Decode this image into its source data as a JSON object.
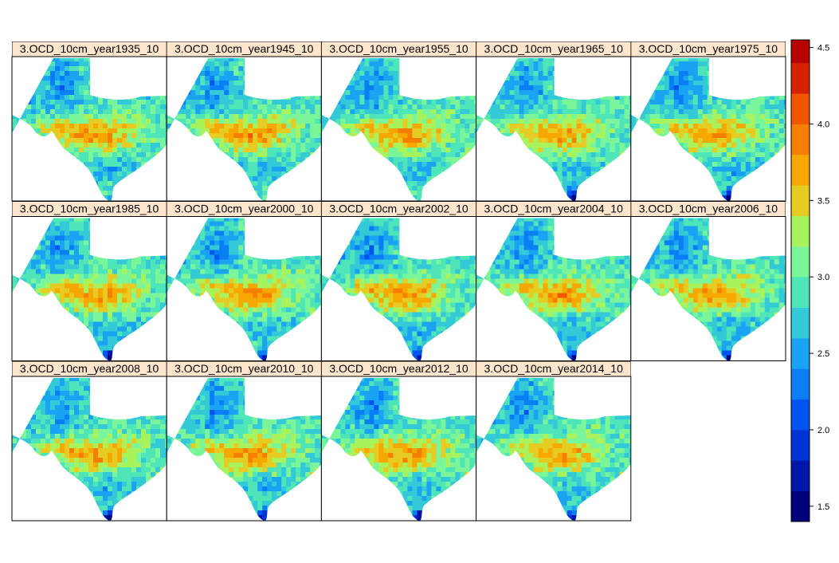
{
  "chart_data": {
    "type": "heatmap",
    "title": "",
    "xlabel": "",
    "ylabel": "",
    "layout": {
      "columns": 5,
      "rows": 3
    },
    "panels": [
      {
        "label": "3.OCD_10cm_year1935_10",
        "year": 1935
      },
      {
        "label": "3.OCD_10cm_year1945_10",
        "year": 1945
      },
      {
        "label": "3.OCD_10cm_year1955_10",
        "year": 1955
      },
      {
        "label": "3.OCD_10cm_year1965_10",
        "year": 1965
      },
      {
        "label": "3.OCD_10cm_year1975_10",
        "year": 1975
      },
      {
        "label": "3.OCD_10cm_year1985_10",
        "year": 1985
      },
      {
        "label": "3.OCD_10cm_year2000_10",
        "year": 2000
      },
      {
        "label": "3.OCD_10cm_year2002_10",
        "year": 2002
      },
      {
        "label": "3.OCD_10cm_year2004_10",
        "year": 2004
      },
      {
        "label": "3.OCD_10cm_year2006_10",
        "year": 2006
      },
      {
        "label": "3.OCD_10cm_year2008_10",
        "year": 2008
      },
      {
        "label": "3.OCD_10cm_year2010_10",
        "year": 2010
      },
      {
        "label": "3.OCD_10cm_year2012_10",
        "year": 2012
      },
      {
        "label": "3.OCD_10cm_year2014_10",
        "year": 2014
      }
    ],
    "colorbar": {
      "range": [
        1.4,
        4.55
      ],
      "breaks": [
        1.4,
        1.6,
        1.8,
        2.0,
        2.2,
        2.4,
        2.6,
        2.8,
        3.0,
        3.2,
        3.4,
        3.6,
        3.8,
        4.0,
        4.2,
        4.4,
        4.55
      ],
      "colors": [
        "#00007a",
        "#0016a8",
        "#0033d6",
        "#0055f0",
        "#0a7ff5",
        "#1aa3f2",
        "#33c9d6",
        "#4ee6b8",
        "#7af59a",
        "#a8f25c",
        "#e6cc22",
        "#f7a800",
        "#f77f00",
        "#f25500",
        "#d62200",
        "#b80000"
      ],
      "ticks": [
        1.5,
        2.0,
        2.5,
        3.0,
        3.5,
        4.0,
        4.5
      ],
      "tick_labels": [
        "1.5",
        "2.0",
        "2.5",
        "3.0",
        "3.5",
        "4.0",
        "4.5"
      ]
    },
    "colors": {
      "strip_background": "#ffe5cc",
      "frame": "#000000"
    }
  }
}
